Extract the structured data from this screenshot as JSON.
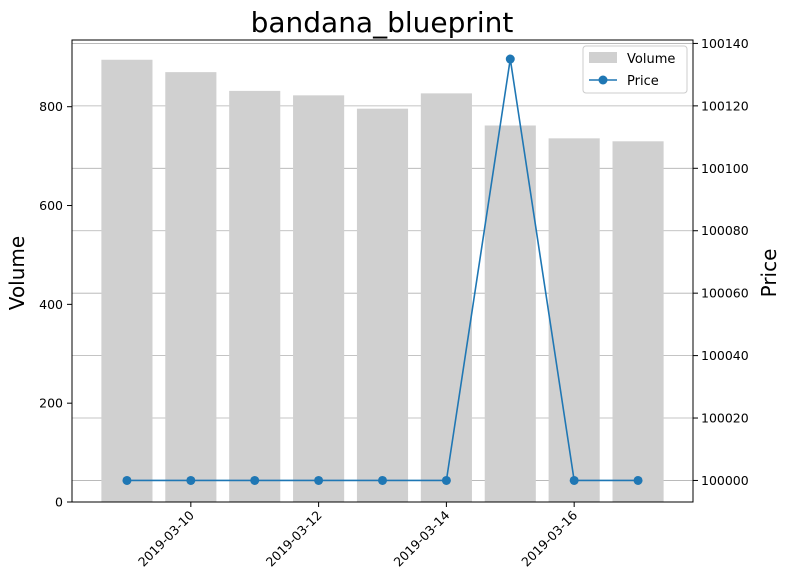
{
  "chart_data": {
    "type": "bar",
    "title": "bandana_blueprint",
    "xlabel": "",
    "ylabel": "Volume",
    "y2label": "Price",
    "dates": [
      "2019-03-09",
      "2019-03-10",
      "2019-03-11",
      "2019-03-12",
      "2019-03-13",
      "2019-03-14",
      "2019-03-15",
      "2019-03-16",
      "2019-03-17"
    ],
    "x_ticks": [
      "2019-03-10",
      "2019-03-12",
      "2019-03-14",
      "2019-03-16"
    ],
    "ylim": [
      0,
      935
    ],
    "y_ticks": [
      0,
      200,
      400,
      600,
      800
    ],
    "y2lim": [
      99993.1,
      100141.1
    ],
    "y2_ticks": [
      100000,
      100020,
      100040,
      100060,
      100080,
      100100,
      100120,
      100140
    ],
    "grid": "horizontal lines on price axis",
    "legend_position": "top-right",
    "series": [
      {
        "name": "Volume",
        "type": "bar",
        "color": "#d0d0d0",
        "values": [
          895,
          870,
          832,
          823,
          796,
          827,
          762,
          736,
          730
        ]
      },
      {
        "name": "Price",
        "type": "line",
        "color": "#1f77b4",
        "marker": "circle",
        "values": [
          100000,
          100000,
          100000,
          100000,
          100000,
          100000,
          100135,
          100000,
          100000
        ]
      }
    ]
  }
}
